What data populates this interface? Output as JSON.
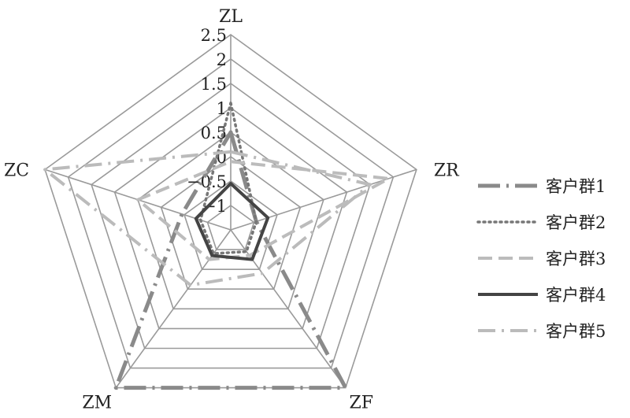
{
  "chart_data": {
    "type": "radar",
    "axes": [
      "ZL",
      "ZR",
      "ZF",
      "ZM",
      "ZC"
    ],
    "rlim": [
      -1.5,
      2.5
    ],
    "ticks": [
      "2.5",
      "2",
      "1.5",
      "1",
      "0.5",
      "0",
      "−0.5",
      "−1"
    ],
    "tick_values": [
      2.5,
      2,
      1.5,
      1,
      0.5,
      0,
      -0.5,
      -1
    ],
    "grid": true,
    "legend_position": "right",
    "series": [
      {
        "name": "客户群1",
        "values": [
          0.5,
          -0.95,
          2.5,
          2.5,
          -0.45
        ],
        "color": "#8a8a8a",
        "dash": "28 8 3 8",
        "width": 5
      },
      {
        "name": "客户群2",
        "values": [
          1.1,
          -0.95,
          -0.95,
          -0.9,
          -0.85
        ],
        "color": "#777777",
        "dash": "2 5",
        "width": 3.5
      },
      {
        "name": "客户群3",
        "values": [
          -0.1,
          1.9,
          -0.85,
          -0.75,
          0.5
        ],
        "color": "#bcbcbc",
        "dash": "18 8",
        "width": 4
      },
      {
        "name": "客户群4",
        "values": [
          -0.55,
          -0.7,
          -0.75,
          -0.85,
          -0.75
        ],
        "color": "#444444",
        "dash": "",
        "width": 4
      },
      {
        "name": "客户群5",
        "values": [
          0.1,
          1.5,
          -0.4,
          -0.1,
          2.5
        ],
        "color": "#bbbbbb",
        "dash": "22 8 3 8",
        "width": 4
      }
    ]
  }
}
